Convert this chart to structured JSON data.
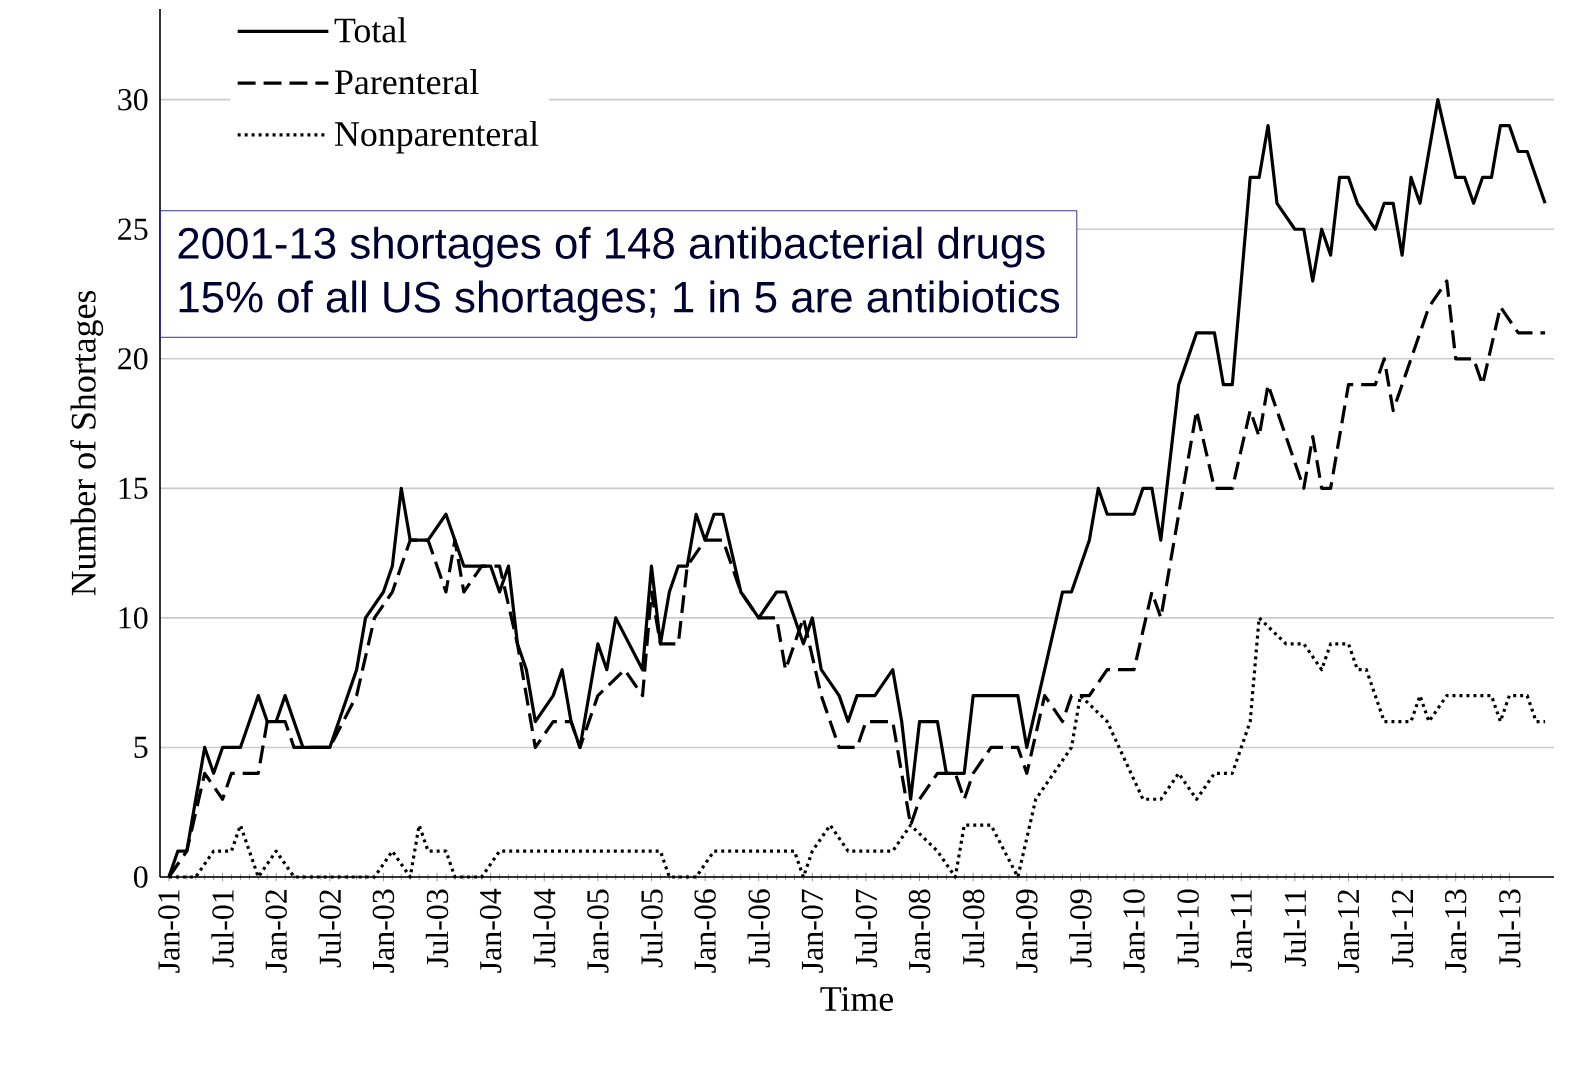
{
  "chart_data": {
    "type": "line",
    "xlabel": "Time",
    "ylabel": "Number of Shortages",
    "xlim": [
      "2000-12",
      "2013-12"
    ],
    "ylim": [
      0,
      33.5
    ],
    "yticks": [
      0,
      5,
      10,
      15,
      20,
      25,
      30
    ],
    "xticks": [
      {
        "value": "2001-01",
        "label": "Jan-01"
      },
      {
        "value": "2001-07",
        "label": "Jul-01"
      },
      {
        "value": "2002-01",
        "label": "Jan-02"
      },
      {
        "value": "2002-07",
        "label": "Jul-02"
      },
      {
        "value": "2003-01",
        "label": "Jan-03"
      },
      {
        "value": "2003-07",
        "label": "Jul-03"
      },
      {
        "value": "2004-01",
        "label": "Jan-04"
      },
      {
        "value": "2004-07",
        "label": "Jul-04"
      },
      {
        "value": "2005-01",
        "label": "Jan-05"
      },
      {
        "value": "2005-07",
        "label": "Jul-05"
      },
      {
        "value": "2006-01",
        "label": "Jan-06"
      },
      {
        "value": "2006-07",
        "label": "Jul-06"
      },
      {
        "value": "2007-01",
        "label": "Jan-07"
      },
      {
        "value": "2007-07",
        "label": "Jul-07"
      },
      {
        "value": "2008-01",
        "label": "Jan-08"
      },
      {
        "value": "2008-07",
        "label": "Jul-08"
      },
      {
        "value": "2009-01",
        "label": "Jan-09"
      },
      {
        "value": "2009-07",
        "label": "Jul-09"
      },
      {
        "value": "2010-01",
        "label": "Jan-10"
      },
      {
        "value": "2010-07",
        "label": "Jul-10"
      },
      {
        "value": "2011-01",
        "label": "Jan-11"
      },
      {
        "value": "2011-07",
        "label": "Jul-11"
      },
      {
        "value": "2012-01",
        "label": "Jan-12"
      },
      {
        "value": "2012-07",
        "label": "Jul-12"
      },
      {
        "value": "2013-01",
        "label": "Jan-13"
      },
      {
        "value": "2013-07",
        "label": "Jul-13"
      }
    ],
    "grid": "y",
    "legend": "top left",
    "annotations": [
      "2001-13 shortages of 148 antibacterial drugs",
      "15% of all US shortages; 1 in 5 are antibiotics"
    ],
    "series": [
      {
        "name": "Total",
        "color": "#000000",
        "line_style": "solid",
        "x": [
          "2001-01",
          "2001-02",
          "2001-03",
          "2001-05",
          "2001-06",
          "2001-07",
          "2001-09",
          "2001-11",
          "2001-12",
          "2002-01",
          "2002-02",
          "2002-04",
          "2002-07",
          "2002-10",
          "2002-11",
          "2003-01",
          "2003-02",
          "2003-03",
          "2003-04",
          "2003-06",
          "2003-08",
          "2003-10",
          "2004-01",
          "2004-02",
          "2004-03",
          "2004-04",
          "2004-05",
          "2004-06",
          "2004-08",
          "2004-09",
          "2004-10",
          "2004-11",
          "2005-01",
          "2005-02",
          "2005-03",
          "2005-06",
          "2005-07",
          "2005-08",
          "2005-09",
          "2005-10",
          "2005-11",
          "2005-12",
          "2006-01",
          "2006-02",
          "2006-03",
          "2006-05",
          "2006-07",
          "2006-09",
          "2006-10",
          "2006-12",
          "2007-01",
          "2007-02",
          "2007-04",
          "2007-05",
          "2007-06",
          "2007-08",
          "2007-10",
          "2007-11",
          "2007-12",
          "2008-01",
          "2008-03",
          "2008-04",
          "2008-06",
          "2008-07",
          "2008-12",
          "2009-01",
          "2009-03",
          "2009-05",
          "2009-06",
          "2009-08",
          "2009-09",
          "2009-10",
          "2010-01",
          "2010-02",
          "2010-03",
          "2010-04",
          "2010-05",
          "2010-06",
          "2010-08",
          "2010-10",
          "2010-11",
          "2010-12",
          "2011-01",
          "2011-02",
          "2011-03",
          "2011-04",
          "2011-05",
          "2011-07",
          "2011-08",
          "2011-09",
          "2011-10",
          "2011-11",
          "2011-12",
          "2012-01",
          "2012-02",
          "2012-04",
          "2012-05",
          "2012-06",
          "2012-07",
          "2012-08",
          "2012-09",
          "2012-10",
          "2012-11",
          "2013-01",
          "2013-02",
          "2013-03",
          "2013-04",
          "2013-05",
          "2013-06",
          "2013-07",
          "2013-08",
          "2013-09",
          "2013-11"
        ],
        "values": [
          0,
          1,
          1,
          5,
          4,
          5,
          5,
          7,
          6,
          6,
          7,
          5,
          5,
          8,
          10,
          11,
          12,
          15,
          13,
          13,
          14,
          12,
          12,
          11,
          12,
          9,
          8,
          6,
          7,
          8,
          6,
          5,
          9,
          8,
          10,
          8,
          12,
          9,
          11,
          12,
          12,
          14,
          13,
          14,
          14,
          11,
          10,
          11,
          11,
          9,
          10,
          8,
          7,
          6,
          7,
          7,
          8,
          6,
          3,
          6,
          6,
          4,
          4,
          7,
          7,
          5,
          8,
          11,
          11,
          13,
          15,
          14,
          14,
          15,
          15,
          13,
          16,
          19,
          21,
          21,
          19,
          19,
          23,
          27,
          27,
          29,
          26,
          25,
          25,
          23,
          25,
          24,
          27,
          27,
          26,
          25,
          26,
          26,
          24,
          27,
          26,
          28,
          30,
          27,
          27,
          26,
          27,
          27,
          29,
          29,
          28,
          28,
          26
        ]
      },
      {
        "name": "Parenteral",
        "color": "#000000",
        "line_style": "dashed",
        "x": [
          "2001-01",
          "2001-03",
          "2001-05",
          "2001-07",
          "2001-08",
          "2001-11",
          "2001-12",
          "2002-02",
          "2002-03",
          "2002-07",
          "2002-10",
          "2002-12",
          "2003-02",
          "2003-04",
          "2003-06",
          "2003-07",
          "2003-08",
          "2003-09",
          "2003-10",
          "2003-12",
          "2004-02",
          "2004-04",
          "2004-06",
          "2004-08",
          "2004-10",
          "2004-11",
          "2005-01",
          "2005-04",
          "2005-06",
          "2005-07",
          "2005-08",
          "2005-10",
          "2005-11",
          "2006-01",
          "2006-03",
          "2006-05",
          "2006-07",
          "2006-09",
          "2006-10",
          "2006-12",
          "2007-02",
          "2007-04",
          "2007-06",
          "2007-07",
          "2007-10",
          "2007-12",
          "2008-01",
          "2008-03",
          "2008-05",
          "2008-06",
          "2008-07",
          "2008-09",
          "2008-12",
          "2009-01",
          "2009-03",
          "2009-05",
          "2009-06",
          "2009-08",
          "2009-10",
          "2010-01",
          "2010-03",
          "2010-04",
          "2010-06",
          "2010-08",
          "2010-10",
          "2010-12",
          "2011-02",
          "2011-03",
          "2011-04",
          "2011-06",
          "2011-08",
          "2011-09",
          "2011-10",
          "2011-11",
          "2012-01",
          "2012-04",
          "2012-05",
          "2012-06",
          "2012-08",
          "2012-10",
          "2012-12",
          "2013-01",
          "2013-03",
          "2013-04",
          "2013-06",
          "2013-08",
          "2013-11"
        ],
        "values": [
          0,
          1,
          4,
          3,
          4,
          4,
          6,
          6,
          5,
          5,
          7,
          10,
          11,
          13,
          13,
          12,
          11,
          13,
          11,
          12,
          12,
          9,
          5,
          6,
          6,
          5,
          7,
          8,
          7,
          11,
          9,
          9,
          12,
          13,
          13,
          11,
          10,
          10,
          8,
          10,
          7,
          5,
          5,
          6,
          6,
          2,
          3,
          4,
          4,
          3,
          4,
          5,
          5,
          4,
          7,
          6,
          7,
          7,
          8,
          8,
          11,
          10,
          14,
          18,
          15,
          15,
          18,
          17,
          19,
          17,
          15,
          17,
          15,
          15,
          19,
          19,
          20,
          18,
          20,
          22,
          23,
          20,
          20,
          19,
          22,
          21,
          21
        ]
      },
      {
        "name": "Nonparenteral",
        "color": "#000000",
        "line_style": "dotted",
        "x": [
          "2001-01",
          "2001-04",
          "2001-06",
          "2001-08",
          "2001-09",
          "2001-11",
          "2002-01",
          "2002-03",
          "2002-12",
          "2003-02",
          "2003-04",
          "2003-05",
          "2003-06",
          "2003-08",
          "2003-09",
          "2003-12",
          "2004-02",
          "2005-08",
          "2005-09",
          "2005-12",
          "2006-02",
          "2006-11",
          "2006-12",
          "2007-01",
          "2007-03",
          "2007-05",
          "2007-10",
          "2007-12",
          "2008-03",
          "2008-05",
          "2008-06",
          "2008-09",
          "2008-12",
          "2009-02",
          "2009-04",
          "2009-06",
          "2009-07",
          "2009-10",
          "2010-02",
          "2010-04",
          "2010-06",
          "2010-08",
          "2010-10",
          "2010-12",
          "2011-02",
          "2011-03",
          "2011-06",
          "2011-08",
          "2011-10",
          "2011-11",
          "2012-01",
          "2012-02",
          "2012-03",
          "2012-05",
          "2012-08",
          "2012-09",
          "2012-10",
          "2012-12",
          "2013-05",
          "2013-06",
          "2013-07",
          "2013-09",
          "2013-10",
          "2013-11"
        ],
        "values": [
          0,
          0,
          1,
          1,
          2,
          0,
          1,
          0,
          0,
          1,
          0,
          2,
          1,
          1,
          0,
          0,
          1,
          1,
          0,
          0,
          1,
          1,
          0,
          1,
          2,
          1,
          1,
          2,
          1,
          0,
          2,
          2,
          0,
          3,
          4,
          5,
          7,
          6,
          3,
          3,
          4,
          3,
          4,
          4,
          6,
          10,
          9,
          9,
          8,
          9,
          9,
          8,
          8,
          6,
          6,
          7,
          6,
          7,
          7,
          6,
          7,
          7,
          6,
          6
        ]
      }
    ]
  }
}
